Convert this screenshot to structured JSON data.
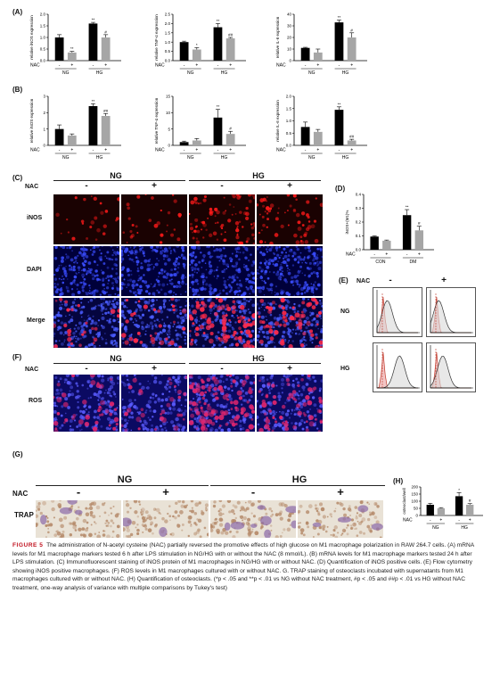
{
  "panel_labels": [
    "(A)",
    "(B)",
    "(C)",
    "(D)",
    "(E)",
    "(F)",
    "(G)",
    "(H)"
  ],
  "nac_label": "NAC",
  "ng_label": "NG",
  "hg_label": "HG",
  "minus": "-",
  "plus": "+",
  "c_panel": {
    "rows": [
      "iNOS",
      "DAPI",
      "Merge"
    ]
  },
  "f_panel": {
    "rows": [
      "ROS"
    ]
  },
  "g_panel": {
    "rows": [
      "TRAP"
    ]
  },
  "e_panel": {
    "rows": [
      "NG",
      "HG"
    ]
  },
  "caption": {
    "fig": "FIGURE 5",
    "text": "The administration of N-acetyl cysteine (NAC) partially reversed the promotive effects of high glucose on M1 macrophage polarization in RAW 264.7 cells. (A) mRNA levels for M1 macrophage markers tested 6 h after LPS stimulation in NG/HG with or without the NAC (8 mmol/L). (B) mRNA levels for M1 macrophage markers tested 24 h after LPS stimulation. (C) Immunofluorescent staining of iNOS protein of M1 macrophages in NG/HG with or without NAC. (D) Quantification of iNOS positive cells. (E) Flow cytometry showing iNOS positive macrophages. (F) ROS levels in M1 macrophages cultured with or without NAC. G. TRAP staining of osteoclasts incubated with supernatants from M1 macrophages cultured with or without NAC. (H) Quantification of osteoclasts. (*p < .05 and **p < .01 vs NG without NAC treatment, #p < .05 and ##p < .01 vs HG without NAC treatment, one-way analysis of variance with multiple comparisons by Tukey's test)"
  },
  "chart_data": [
    {
      "id": "A1",
      "type": "bar",
      "ylabel": "relative iNOS expression",
      "ylim": [
        0,
        2.0
      ],
      "yticks": [
        "0.0",
        "0.5",
        "1.0",
        "1.5",
        "2.0"
      ],
      "groups": [
        "NG",
        "HG"
      ],
      "conditions": [
        "-",
        "+",
        "-",
        "+"
      ],
      "values": [
        1.0,
        0.35,
        1.6,
        1.0
      ],
      "errors": [
        0.12,
        0.05,
        0.05,
        0.12
      ],
      "marks": [
        "",
        "**",
        "**",
        "#"
      ]
    },
    {
      "id": "A2",
      "type": "bar",
      "ylabel": "relative TNF-α expression",
      "ylim": [
        0,
        2.5
      ],
      "yticks": [
        "0.0",
        "0.5",
        "1.0",
        "1.5",
        "2.0",
        "2.5"
      ],
      "groups": [
        "NG",
        "HG"
      ],
      "conditions": [
        "-",
        "+",
        "-",
        "+"
      ],
      "values": [
        1.0,
        0.6,
        1.8,
        1.2
      ],
      "errors": [
        0.05,
        0.1,
        0.2,
        0.05
      ],
      "marks": [
        "",
        "*",
        "**",
        "##"
      ]
    },
    {
      "id": "A3",
      "type": "bar",
      "ylabel": "relative IL-6 expression",
      "ylim": [
        0,
        40
      ],
      "yticks": [
        "0",
        "10",
        "20",
        "30",
        "40"
      ],
      "groups": [
        "NG",
        "HG"
      ],
      "conditions": [
        "-",
        "+",
        "-",
        "+"
      ],
      "values": [
        11,
        7,
        33,
        20
      ],
      "errors": [
        0.5,
        3,
        2,
        4
      ],
      "marks": [
        "",
        "",
        "**",
        "#"
      ]
    },
    {
      "id": "B1",
      "type": "bar",
      "ylabel": "relative iNOS expression",
      "ylim": [
        0,
        3
      ],
      "yticks": [
        "0",
        "1",
        "2",
        "3"
      ],
      "groups": [
        "NG",
        "HG"
      ],
      "conditions": [
        "-",
        "+",
        "-",
        "+"
      ],
      "values": [
        1.0,
        0.6,
        2.4,
        1.8
      ],
      "errors": [
        0.25,
        0.1,
        0.15,
        0.15
      ],
      "marks": [
        "",
        "",
        "**",
        "##"
      ]
    },
    {
      "id": "B2",
      "type": "bar",
      "ylabel": "relative TNF-α expression",
      "ylim": [
        0,
        15
      ],
      "yticks": [
        "0",
        "5",
        "10",
        "15"
      ],
      "groups": [
        "NG",
        "HG"
      ],
      "conditions": [
        "-",
        "+",
        "-",
        "+"
      ],
      "values": [
        1.0,
        1.5,
        8.5,
        3.5
      ],
      "errors": [
        0.3,
        0.6,
        2.5,
        0.8
      ],
      "marks": [
        "",
        "",
        "**",
        "#"
      ]
    },
    {
      "id": "B3",
      "type": "bar",
      "ylabel": "relative IL-6 expression",
      "ylim": [
        0,
        2.0
      ],
      "yticks": [
        "0.0",
        "0.5",
        "1.0",
        "1.5",
        "2.0"
      ],
      "groups": [
        "NG",
        "HG"
      ],
      "conditions": [
        "-",
        "+",
        "-",
        "+"
      ],
      "values": [
        0.75,
        0.55,
        1.45,
        0.2
      ],
      "errors": [
        0.2,
        0.1,
        0.12,
        0.05
      ],
      "marks": [
        "",
        "",
        "**",
        "##"
      ]
    },
    {
      "id": "D",
      "type": "bar",
      "ylabel": "iNOS+(M1)%",
      "ylim": [
        0,
        0.4
      ],
      "yticks": [
        "0.0",
        "0.1",
        "0.2",
        "0.3",
        "0.4"
      ],
      "groups": [
        "CON",
        "DM"
      ],
      "conditions": [
        "-",
        "+",
        "-",
        "+"
      ],
      "values": [
        0.095,
        0.065,
        0.25,
        0.14
      ],
      "errors": [
        0.005,
        0.005,
        0.04,
        0.03
      ],
      "marks": [
        "",
        "",
        "**",
        "#"
      ]
    },
    {
      "id": "H",
      "type": "bar",
      "ylabel": "osteoclast/well",
      "ylim": [
        0,
        200
      ],
      "yticks": [
        "0",
        "50",
        "100",
        "150",
        "200"
      ],
      "groups": [
        "NG",
        "HG"
      ],
      "conditions": [
        "-",
        "+",
        "-",
        "+"
      ],
      "values": [
        75,
        50,
        135,
        75
      ],
      "errors": [
        10,
        5,
        25,
        8
      ],
      "marks": [
        "",
        "",
        "*",
        "#"
      ]
    }
  ]
}
